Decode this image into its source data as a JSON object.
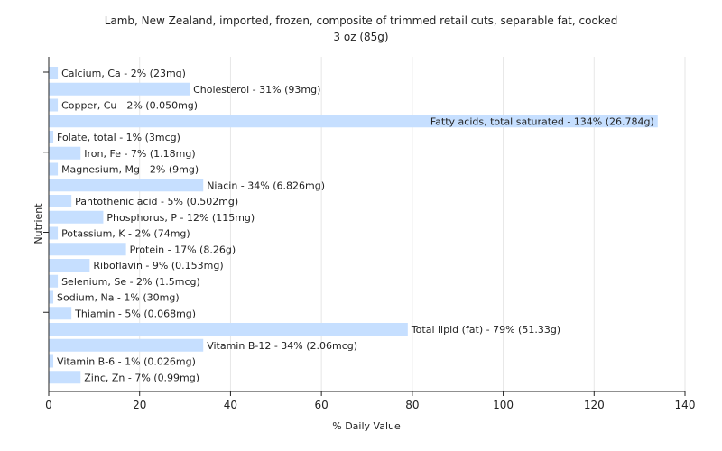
{
  "chart_data": {
    "type": "bar",
    "orientation": "horizontal",
    "title": "Lamb, New Zealand, imported, frozen, composite of trimmed retail cuts, separable fat, cooked",
    "subtitle": "3 oz (85g)",
    "xlabel": "% Daily Value",
    "ylabel": "Nutrient",
    "xlim": [
      0,
      140
    ],
    "xticks": [
      0,
      20,
      40,
      60,
      80,
      100,
      120,
      140
    ],
    "grid": true,
    "bar_color": "#c6dfff",
    "grid_color": "#e6e6e6",
    "categories": [
      "Calcium, Ca",
      "Cholesterol",
      "Copper, Cu",
      "Fatty acids, total saturated",
      "Folate, total",
      "Iron, Fe",
      "Magnesium, Mg",
      "Niacin",
      "Pantothenic acid",
      "Phosphorus, P",
      "Potassium, K",
      "Protein",
      "Riboflavin",
      "Selenium, Se",
      "Sodium, Na",
      "Thiamin",
      "Total lipid (fat)",
      "Vitamin B-12",
      "Vitamin B-6",
      "Zinc, Zn"
    ],
    "values": [
      2,
      31,
      2,
      134,
      1,
      7,
      2,
      34,
      5,
      12,
      2,
      17,
      9,
      2,
      1,
      5,
      79,
      34,
      1,
      7
    ],
    "labels": [
      "Calcium, Ca - 2% (23mg)",
      "Cholesterol - 31% (93mg)",
      "Copper, Cu - 2% (0.050mg)",
      "Fatty acids, total saturated - 134% (26.784g)",
      "Folate, total - 1% (3mcg)",
      "Iron, Fe - 7% (1.18mg)",
      "Magnesium, Mg - 2% (9mg)",
      "Niacin - 34% (6.826mg)",
      "Pantothenic acid - 5% (0.502mg)",
      "Phosphorus, P - 12% (115mg)",
      "Potassium, K - 2% (74mg)",
      "Protein - 17% (8.26g)",
      "Riboflavin - 9% (0.153mg)",
      "Selenium, Se - 2% (1.5mcg)",
      "Sodium, Na - 1% (30mg)",
      "Thiamin - 5% (0.068mg)",
      "Total lipid (fat) - 79% (51.33g)",
      "Vitamin B-12 - 34% (2.06mcg)",
      "Vitamin B-6 - 1% (0.026mg)",
      "Zinc, Zn - 7% (0.99mg)"
    ]
  }
}
